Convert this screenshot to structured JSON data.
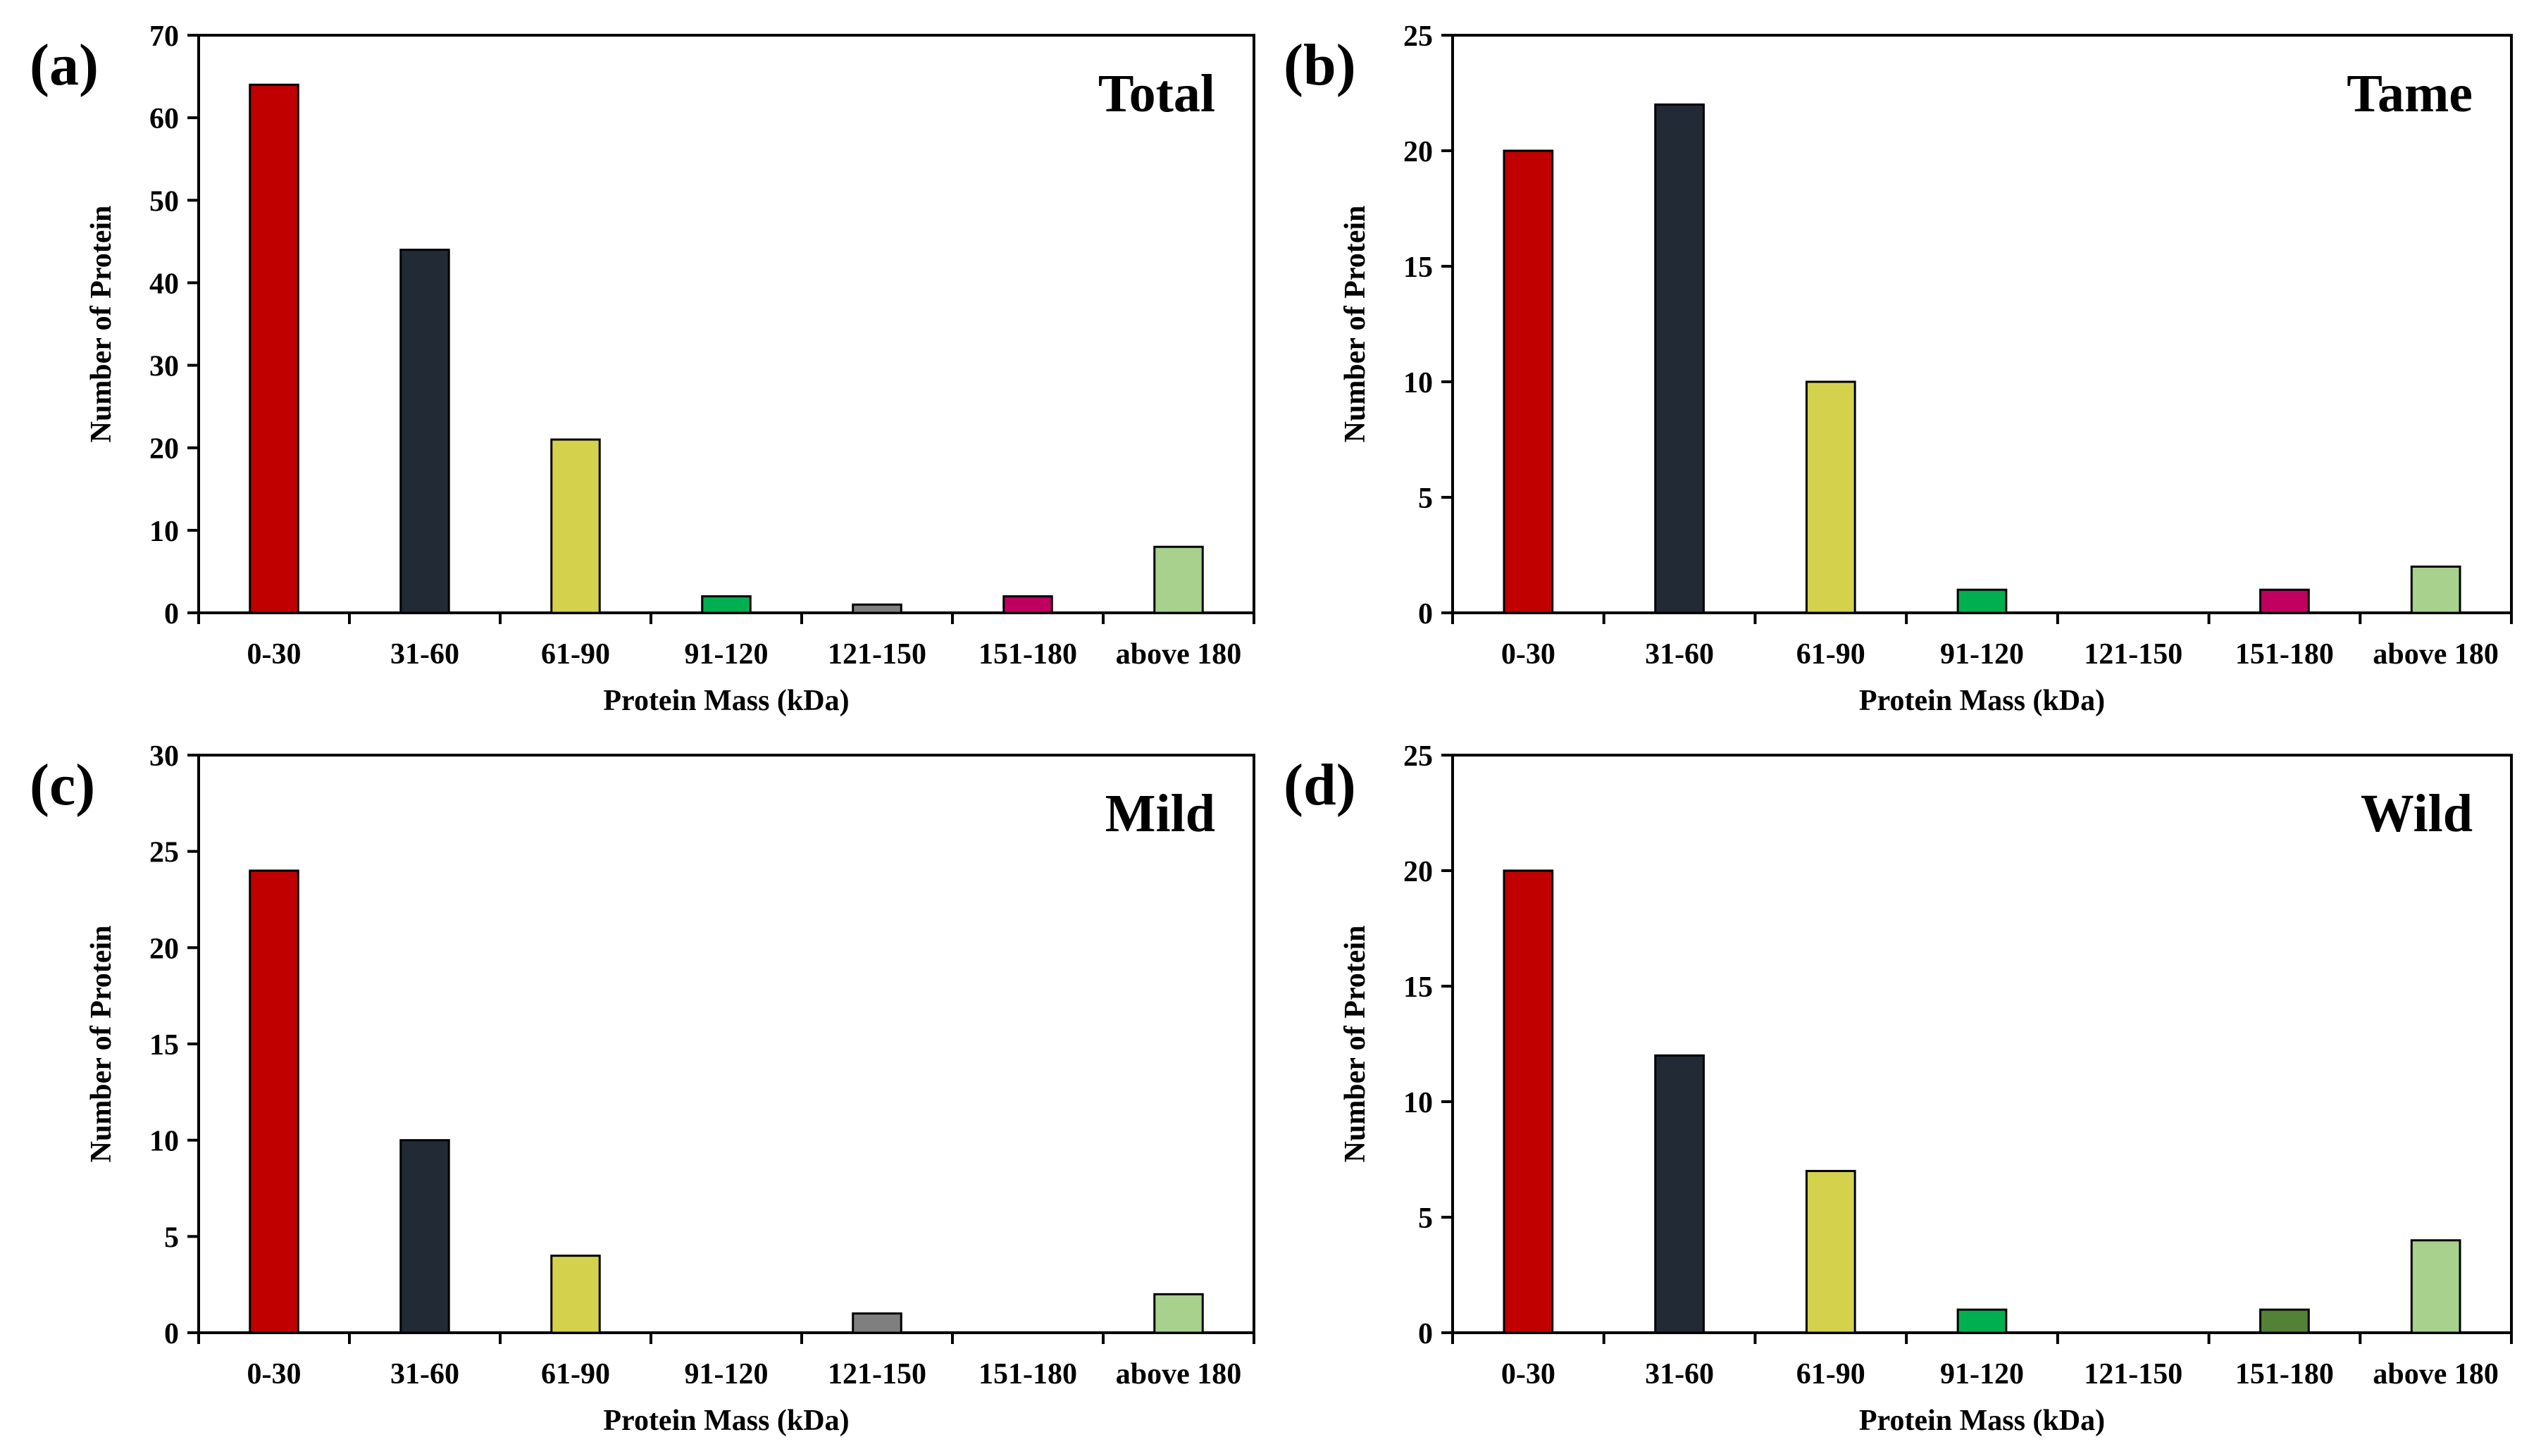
{
  "chart_data": [
    {
      "type": "bar",
      "panel_label": "(a)",
      "title": "Total",
      "xlabel": "Protein Mass (kDa)",
      "ylabel": "Number of Protein",
      "ylim": [
        0,
        70
      ],
      "yticks": [
        0,
        10,
        20,
        30,
        40,
        50,
        60,
        70
      ],
      "categories": [
        "0-30",
        "31-60",
        "61-90",
        "91-120",
        "121-150",
        "151-180",
        "above 180"
      ],
      "values": [
        64,
        44,
        21,
        2,
        1,
        2,
        8
      ],
      "colors": [
        "#c00000",
        "#222a35",
        "#d4d24c",
        "#00b050",
        "#7f7f7f",
        "#c00060",
        "#a9d18e"
      ]
    },
    {
      "type": "bar",
      "panel_label": "(b)",
      "title": "Tame",
      "xlabel": "Protein Mass (kDa)",
      "ylabel": "Number of Protein",
      "ylim": [
        0,
        25
      ],
      "yticks": [
        0,
        5,
        10,
        15,
        20,
        25
      ],
      "categories": [
        "0-30",
        "31-60",
        "61-90",
        "91-120",
        "121-150",
        "151-180",
        "above 180"
      ],
      "values": [
        20,
        22,
        10,
        1,
        0,
        1,
        2
      ],
      "colors": [
        "#c00000",
        "#222a35",
        "#d4d24c",
        "#00b050",
        "#7f7f7f",
        "#c00060",
        "#a9d18e"
      ]
    },
    {
      "type": "bar",
      "panel_label": "(c)",
      "title": "Mild",
      "xlabel": "Protein Mass (kDa)",
      "ylabel": "Number of Protein",
      "ylim": [
        0,
        30
      ],
      "yticks": [
        0,
        5,
        10,
        15,
        20,
        25,
        30
      ],
      "categories": [
        "0-30",
        "31-60",
        "61-90",
        "91-120",
        "121-150",
        "151-180",
        "above 180"
      ],
      "values": [
        24,
        10,
        4,
        0,
        1,
        0,
        2
      ],
      "colors": [
        "#c00000",
        "#222a35",
        "#d4d24c",
        "#00b050",
        "#7f7f7f",
        "#c00060",
        "#a9d18e"
      ]
    },
    {
      "type": "bar",
      "panel_label": "(d)",
      "title": "Wild",
      "xlabel": "Protein Mass (kDa)",
      "ylabel": "Number of Protein",
      "ylim": [
        0,
        25
      ],
      "yticks": [
        0,
        5,
        10,
        15,
        20,
        25
      ],
      "categories": [
        "0-30",
        "31-60",
        "61-90",
        "91-120",
        "121-150",
        "151-180",
        "above 180"
      ],
      "values": [
        20,
        12,
        7,
        1,
        0,
        1,
        4
      ],
      "colors": [
        "#c00000",
        "#222a35",
        "#d4d24c",
        "#00b050",
        "#7f7f7f",
        "#538135",
        "#a9d18e"
      ]
    }
  ]
}
